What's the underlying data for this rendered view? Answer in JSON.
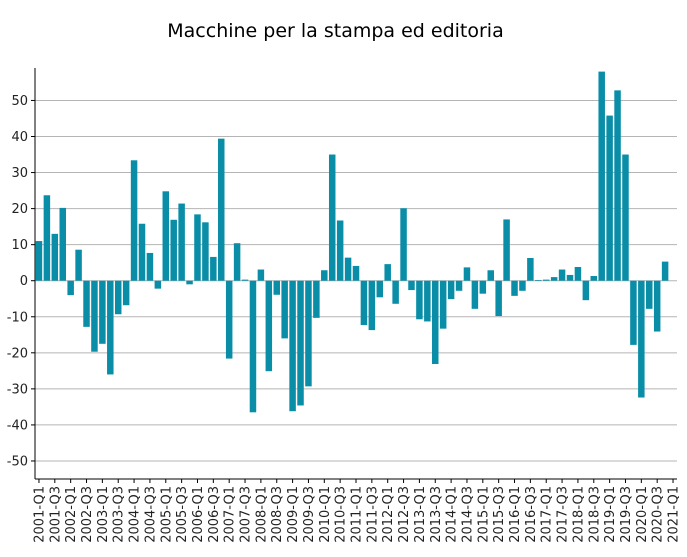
{
  "chart_data": {
    "type": "bar",
    "title": "Macchine per la stampa ed editoria",
    "xlabel": "",
    "ylabel": "",
    "ylim": [
      -55,
      59
    ],
    "yticks": [
      -50,
      -40,
      -30,
      -20,
      -10,
      0,
      10,
      20,
      30,
      40,
      50
    ],
    "grid": true,
    "bar_color": "#0a8ea8",
    "categories": [
      "2001-Q1",
      "2001-Q2",
      "2001-Q3",
      "2001-Q4",
      "2002-Q1",
      "2002-Q2",
      "2002-Q3",
      "2002-Q4",
      "2003-Q1",
      "2003-Q2",
      "2003-Q3",
      "2003-Q4",
      "2004-Q1",
      "2004-Q2",
      "2004-Q3",
      "2004-Q4",
      "2005-Q1",
      "2005-Q2",
      "2005-Q3",
      "2005-Q4",
      "2006-Q1",
      "2006-Q2",
      "2006-Q3",
      "2006-Q4",
      "2007-Q1",
      "2007-Q2",
      "2007-Q3",
      "2007-Q4",
      "2008-Q1",
      "2008-Q2",
      "2008-Q3",
      "2008-Q4",
      "2009-Q1",
      "2009-Q2",
      "2009-Q3",
      "2009-Q4",
      "2010-Q1",
      "2010-Q2",
      "2010-Q3",
      "2010-Q4",
      "2011-Q1",
      "2011-Q2",
      "2011-Q3",
      "2011-Q4",
      "2012-Q1",
      "2012-Q2",
      "2012-Q3",
      "2012-Q4",
      "2013-Q1",
      "2013-Q2",
      "2013-Q3",
      "2013-Q4",
      "2014-Q1",
      "2014-Q2",
      "2014-Q3",
      "2014-Q4",
      "2015-Q1",
      "2015-Q2",
      "2015-Q3",
      "2015-Q4",
      "2016-Q1",
      "2016-Q2",
      "2016-Q3",
      "2016-Q4",
      "2017-Q1",
      "2017-Q2",
      "2017-Q3",
      "2017-Q4",
      "2018-Q1",
      "2018-Q2",
      "2018-Q3",
      "2018-Q4",
      "2019-Q1",
      "2019-Q2",
      "2019-Q3",
      "2019-Q4",
      "2020-Q1",
      "2020-Q2",
      "2020-Q3",
      "2020-Q4",
      "2021-Q1"
    ],
    "tick_labels": [
      "2001-Q1",
      "2001-Q3",
      "2002-Q1",
      "2002-Q3",
      "2003-Q1",
      "2003-Q3",
      "2004-Q1",
      "2004-Q3",
      "2005-Q1",
      "2005-Q3",
      "2006-Q1",
      "2006-Q3",
      "2007-Q1",
      "2007-Q3",
      "2008-Q1",
      "2008-Q3",
      "2009-Q1",
      "2009-Q3",
      "2010-Q1",
      "2010-Q3",
      "2011-Q1",
      "2011-Q3",
      "2012-Q1",
      "2012-Q3",
      "2013-Q1",
      "2013-Q3",
      "2014-Q1",
      "2014-Q3",
      "2015-Q1",
      "2015-Q3",
      "2016-Q1",
      "2016-Q3",
      "2017-Q1",
      "2017-Q3",
      "2018-Q1",
      "2018-Q3",
      "2019-Q1",
      "2019-Q3",
      "2020-Q1",
      "2020-Q3",
      "2021-Q1"
    ],
    "values": [
      11,
      23.7,
      13,
      20.2,
      -4,
      8.6,
      -12.8,
      -19.7,
      -17.5,
      -26,
      -9.3,
      -6.8,
      33.4,
      15.8,
      7.7,
      -2.2,
      24.8,
      16.9,
      21.4,
      -1,
      18.4,
      16.2,
      6.6,
      39.4,
      -21.6,
      10.4,
      0.3,
      -36.5,
      3.1,
      -25.1,
      -3.9,
      -16,
      -36.2,
      -34.6,
      -29.3,
      -10.3,
      2.9,
      35,
      16.7,
      6.4,
      4.1,
      -12.3,
      -13.7,
      -4.6,
      4.6,
      -6.4,
      20.1,
      -2.6,
      -10.7,
      -11.3,
      -23.1,
      -13.3,
      -5.1,
      -2.8,
      3.7,
      -7.8,
      -3.6,
      2.9,
      -9.8,
      17,
      -4.2,
      -2.8,
      6.3,
      0.2,
      0.3,
      1,
      3.1,
      1.6,
      3.8,
      -5.4,
      1.3,
      58,
      45.8,
      52.8,
      35,
      -17.8,
      -32.4,
      -7.8,
      -14.1,
      5.3,
      0
    ]
  }
}
